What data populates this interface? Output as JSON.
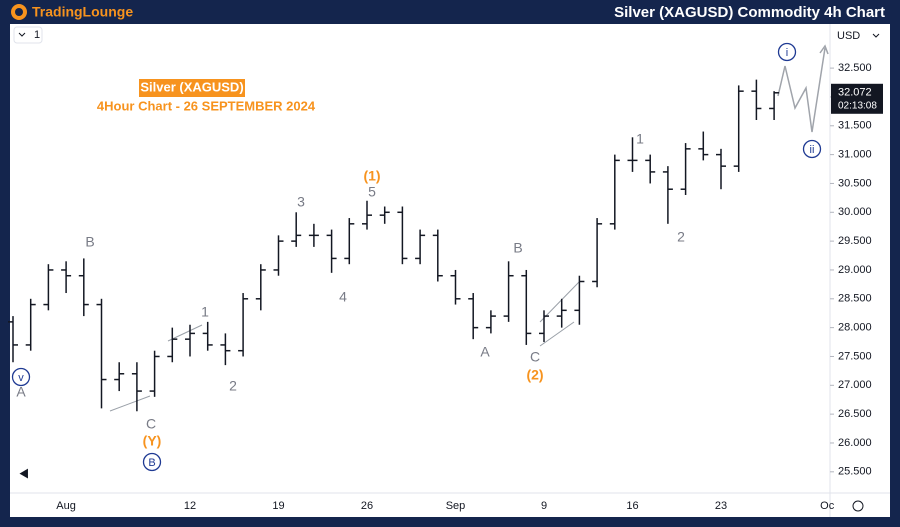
{
  "header": {
    "logo": "TradingLounge",
    "title": "Silver (XAGUSD) Commodity 4h Chart"
  },
  "chart_data": {
    "type": "ohlc",
    "title": "Silver (XAGUSD)",
    "subtitle": "4Hour Chart - 26 SEPTEMBER 2024",
    "currency": "USD",
    "interval_label": "1",
    "countdown": "02:13:08",
    "color": "#131722",
    "grid": false,
    "categories": [
      null,
      null,
      null,
      "Aug",
      null,
      null,
      null,
      null,
      null,
      null,
      "12",
      null,
      null,
      null,
      null,
      "19",
      null,
      null,
      null,
      null,
      "26",
      null,
      null,
      null,
      null,
      "Sep",
      null,
      null,
      null,
      null,
      "9",
      null,
      null,
      null,
      null,
      "16",
      null,
      null,
      null,
      null,
      "23",
      null,
      null,
      null,
      null,
      null,
      "Oc"
    ],
    "open": [
      28.1,
      27.7,
      28.4,
      29.0,
      28.9,
      28.4,
      27.1,
      27.2,
      26.9,
      27.5,
      27.8,
      27.9,
      27.7,
      27.6,
      28.5,
      29.0,
      29.5,
      29.6,
      29.6,
      29.2,
      29.8,
      29.95,
      30.0,
      29.2,
      29.6,
      28.9,
      28.5,
      28.0,
      28.2,
      28.9,
      27.9,
      28.2,
      28.3,
      28.8,
      29.8,
      30.9,
      30.9,
      30.7,
      30.4,
      31.1,
      31.0,
      30.8,
      32.1,
      31.8,
      null,
      null,
      null
    ],
    "high": [
      28.2,
      28.5,
      29.1,
      29.15,
      29.2,
      28.5,
      27.4,
      27.4,
      27.6,
      28.0,
      28.05,
      28.1,
      27.9,
      28.6,
      29.1,
      29.6,
      30.0,
      29.8,
      29.7,
      29.9,
      30.2,
      30.1,
      30.1,
      29.7,
      29.7,
      29.0,
      28.6,
      28.3,
      29.15,
      29.0,
      28.3,
      28.5,
      28.9,
      29.9,
      31.0,
      31.3,
      31.0,
      30.8,
      31.2,
      31.4,
      31.1,
      32.2,
      32.3,
      32.1,
      null,
      null,
      null
    ],
    "low": [
      27.4,
      27.6,
      28.3,
      28.6,
      28.2,
      26.6,
      26.9,
      26.55,
      26.8,
      27.4,
      27.5,
      27.6,
      27.35,
      27.5,
      28.3,
      28.9,
      29.4,
      29.4,
      28.95,
      29.1,
      29.7,
      29.8,
      29.1,
      29.1,
      28.8,
      28.4,
      27.8,
      27.9,
      28.1,
      27.7,
      27.75,
      28.0,
      28.05,
      28.7,
      29.7,
      30.7,
      30.5,
      29.8,
      30.3,
      30.9,
      30.4,
      30.7,
      31.6,
      31.6,
      null,
      null,
      null
    ],
    "close": [
      27.7,
      28.4,
      29.0,
      28.9,
      28.4,
      27.1,
      27.2,
      26.9,
      27.5,
      27.8,
      27.9,
      27.7,
      27.6,
      28.5,
      29.0,
      29.5,
      29.6,
      29.6,
      29.2,
      29.8,
      29.95,
      30.0,
      29.2,
      29.6,
      28.9,
      28.5,
      28.0,
      28.2,
      28.9,
      27.9,
      28.2,
      28.3,
      28.8,
      29.8,
      30.9,
      30.9,
      30.7,
      30.4,
      31.1,
      31.0,
      30.8,
      32.1,
      31.8,
      32.072,
      null,
      null,
      null
    ],
    "ylim": [
      25.15,
      33.23
    ],
    "yticks": [
      {
        "value": 25.5,
        "label": "25.500"
      },
      {
        "value": 26,
        "label": "26.000"
      },
      {
        "value": 26.5,
        "label": "26.500"
      },
      {
        "value": 27,
        "label": "27.000"
      },
      {
        "value": 27.5,
        "label": "27.500"
      },
      {
        "value": 28,
        "label": "28.000"
      },
      {
        "value": 28.5,
        "label": "28.500"
      },
      {
        "value": 29,
        "label": "29.000"
      },
      {
        "value": 29.5,
        "label": "29.500"
      },
      {
        "value": 30,
        "label": "30.000"
      },
      {
        "value": 30.5,
        "label": "30.500"
      },
      {
        "value": 31,
        "label": "31.000"
      },
      {
        "value": 31.5,
        "label": "31.500"
      },
      {
        "value": 32,
        "label": "32.000"
      },
      {
        "value": 32.5,
        "label": "32.500"
      }
    ],
    "annotations": [
      {
        "text": "v",
        "style": "circle"
      },
      {
        "text": "A",
        "style": "gray"
      },
      {
        "text": "B",
        "style": "gray"
      },
      {
        "text": "C",
        "style": "gray"
      },
      {
        "text": "(Y)",
        "style": "orange"
      },
      {
        "text": "B",
        "style": "circle"
      },
      {
        "text": "1",
        "style": "gray"
      },
      {
        "text": "2",
        "style": "gray"
      },
      {
        "text": "3",
        "style": "gray"
      },
      {
        "text": "4",
        "style": "gray"
      },
      {
        "text": "(1)",
        "style": "orange"
      },
      {
        "text": "5",
        "style": "gray"
      },
      {
        "text": "A",
        "style": "gray"
      },
      {
        "text": "B",
        "style": "gray"
      },
      {
        "text": "C",
        "style": "gray"
      },
      {
        "text": "(2)",
        "style": "orange"
      },
      {
        "text": "1",
        "style": "gray"
      },
      {
        "text": "2",
        "style": "gray"
      },
      {
        "text": "i",
        "style": "circle"
      },
      {
        "text": "ii",
        "style": "circle"
      }
    ]
  }
}
